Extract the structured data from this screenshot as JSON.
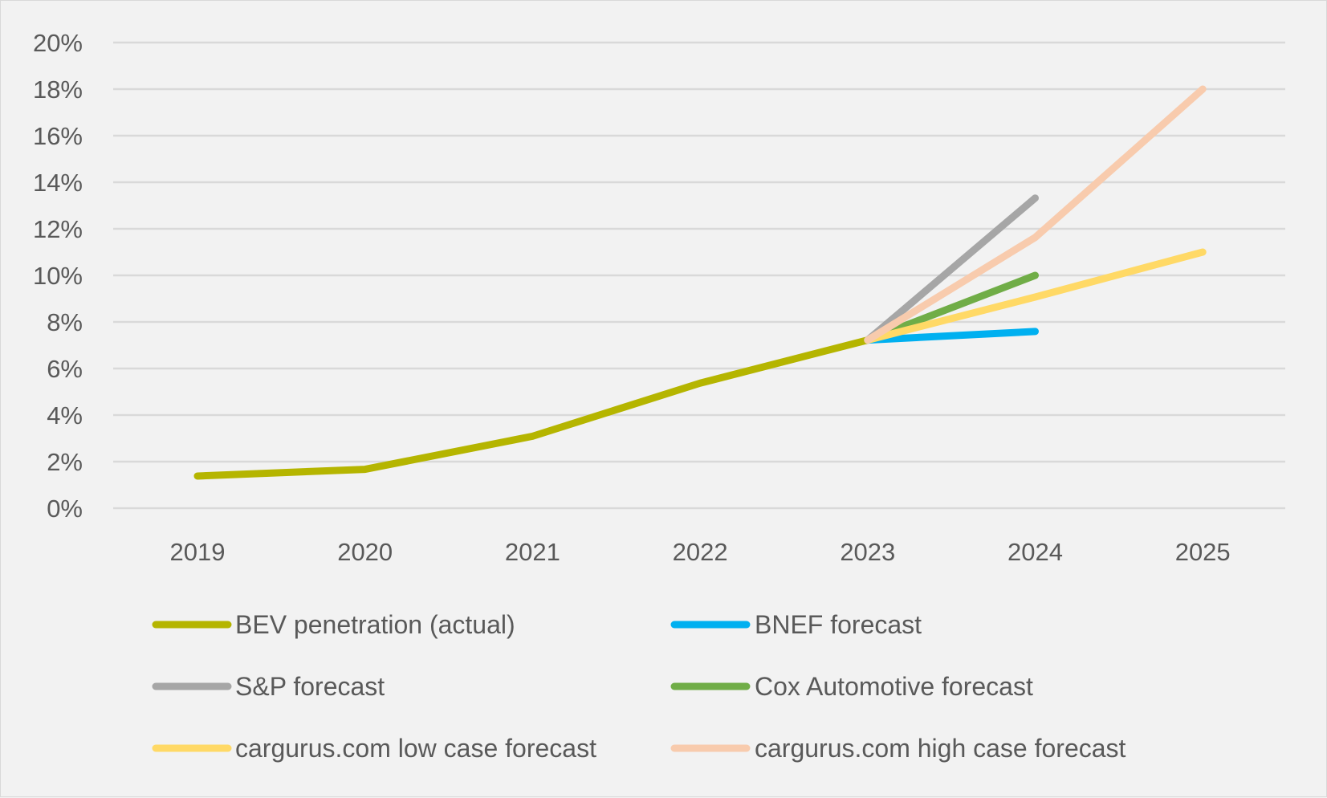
{
  "chart_data": {
    "type": "line",
    "title": "",
    "xlabel": "",
    "ylabel": "",
    "categories": [
      "2019",
      "2020",
      "2021",
      "2022",
      "2023",
      "2024",
      "2025"
    ],
    "ylim": [
      0,
      0.2
    ],
    "yticks": [
      0,
      0.02,
      0.04,
      0.06,
      0.08,
      0.1,
      0.12,
      0.14,
      0.16,
      0.18,
      0.2
    ],
    "ytick_labels": [
      "0%",
      "2%",
      "4%",
      "6%",
      "8%",
      "10%",
      "12%",
      "14%",
      "16%",
      "18%",
      "20%"
    ],
    "grid": true,
    "legend_position": "bottom",
    "series": [
      {
        "name": "BEV penetration (actual)",
        "color": "#b5b500",
        "values": [
          0.0138,
          0.0167,
          0.0309,
          0.0537,
          0.0722,
          null,
          null
        ]
      },
      {
        "name": "BNEF forecast",
        "color": "#00b0f0",
        "values": [
          null,
          null,
          null,
          null,
          0.0722,
          0.0759,
          null
        ]
      },
      {
        "name": "S&P forecast",
        "color": "#a6a6a6",
        "values": [
          null,
          null,
          null,
          null,
          0.0722,
          0.1332,
          null
        ]
      },
      {
        "name": "Cox Automotive forecast",
        "color": "#70ad47",
        "values": [
          null,
          null,
          null,
          null,
          0.0722,
          0.1,
          null
        ]
      },
      {
        "name": "cargurus.com low case forecast",
        "color": "#ffd966",
        "values": [
          null,
          null,
          null,
          null,
          0.0722,
          0.0907,
          0.11
        ]
      },
      {
        "name": "cargurus.com high case forecast",
        "color": "#f8cbad",
        "values": [
          null,
          null,
          null,
          null,
          0.0722,
          0.1163,
          0.18
        ]
      }
    ]
  }
}
